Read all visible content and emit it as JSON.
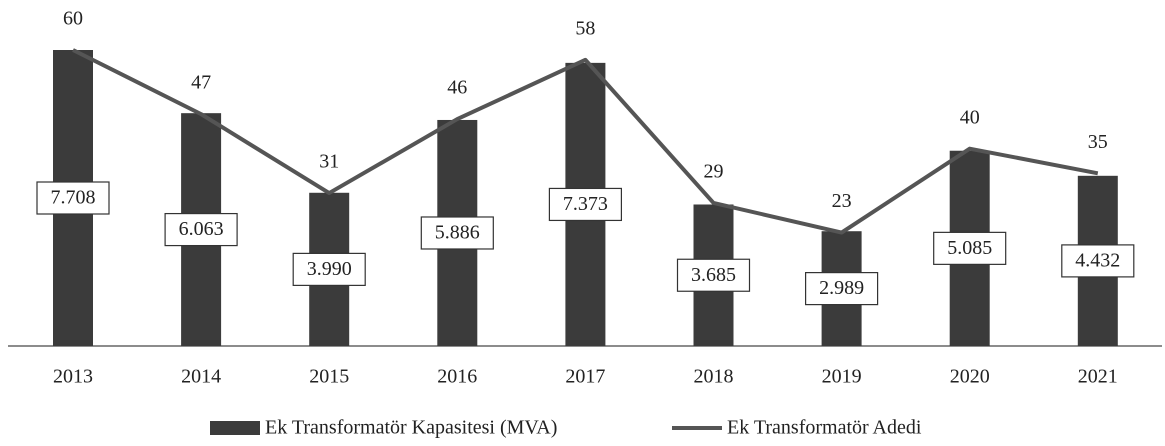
{
  "chart_data": {
    "type": "bar",
    "categories": [
      "2013",
      "2014",
      "2015",
      "2016",
      "2017",
      "2018",
      "2019",
      "2020",
      "2021"
    ],
    "series": [
      {
        "name": "Ek Transformatör Kapasitesi (MVA)",
        "color": "#3b3b3b",
        "values": [
          7708,
          6063,
          3990,
          5886,
          7373,
          3685,
          2989,
          5085,
          4432
        ],
        "value_labels": [
          "7.708",
          "6.063",
          "3.990",
          "5.886",
          "7.373",
          "3.685",
          "2.989",
          "5.085",
          "4.432"
        ]
      },
      {
        "name": "Ek Transformatör Adedi",
        "color": "#555555",
        "type": "line",
        "values": [
          60,
          47,
          31,
          46,
          58,
          29,
          23,
          40,
          35
        ]
      }
    ]
  }
}
